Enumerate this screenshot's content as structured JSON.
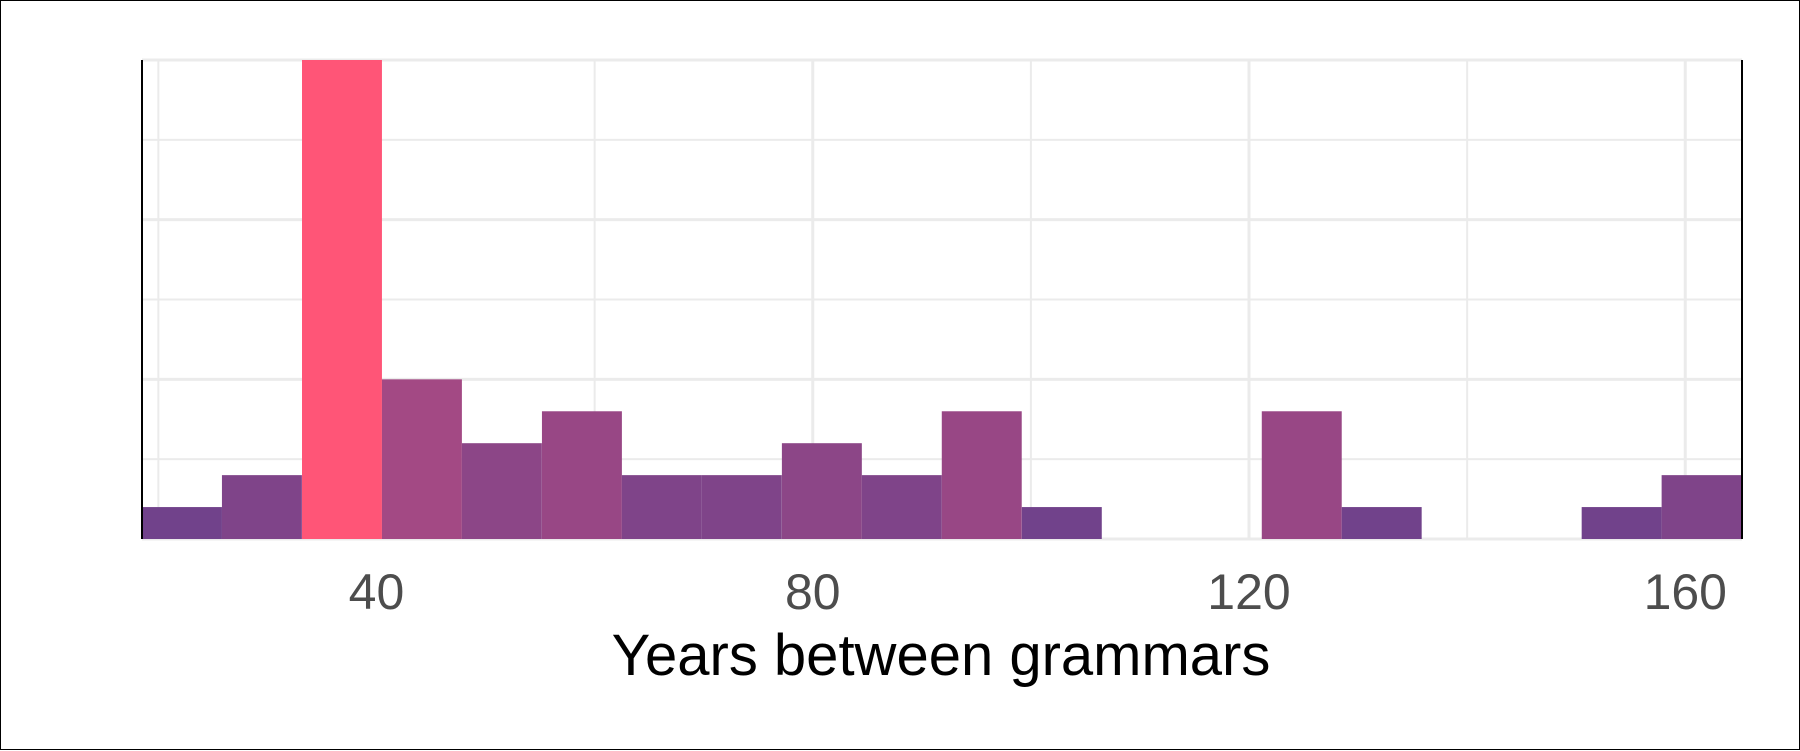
{
  "chart_data": {
    "type": "bar",
    "xlabel": "Years between grammars",
    "ylabel": "",
    "title": "",
    "xlim": [
      18.5,
      165.2
    ],
    "ylim": [
      0,
      15
    ],
    "x_ticks": [
      40,
      80,
      120,
      160
    ],
    "x_tick_labels": [
      "40",
      "80",
      "120",
      "160"
    ],
    "bin_width": 7.33,
    "bins": [
      {
        "start": 18.5,
        "count": 1
      },
      {
        "start": 25.83,
        "count": 2
      },
      {
        "start": 33.17,
        "count": 15
      },
      {
        "start": 40.5,
        "count": 5
      },
      {
        "start": 47.83,
        "count": 3
      },
      {
        "start": 55.17,
        "count": 4
      },
      {
        "start": 62.5,
        "count": 2
      },
      {
        "start": 69.83,
        "count": 2
      },
      {
        "start": 77.17,
        "count": 3
      },
      {
        "start": 84.5,
        "count": 2
      },
      {
        "start": 91.83,
        "count": 4
      },
      {
        "start": 99.17,
        "count": 1
      },
      {
        "start": 106.5,
        "count": 0
      },
      {
        "start": 113.83,
        "count": 0
      },
      {
        "start": 121.17,
        "count": 4
      },
      {
        "start": 128.5,
        "count": 1
      },
      {
        "start": 135.83,
        "count": 0
      },
      {
        "start": 143.17,
        "count": 0
      },
      {
        "start": 150.5,
        "count": 1
      },
      {
        "start": 157.83,
        "count": 2
      }
    ],
    "grid": true,
    "legend": "none",
    "fill_colors": {
      "low": "#5b3f8e",
      "high": "#ff5577"
    }
  }
}
